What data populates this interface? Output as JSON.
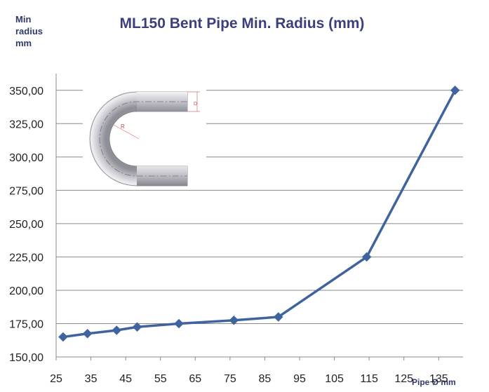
{
  "chart_data": {
    "type": "line",
    "title": "ML150 Bent Pipe Min. Radius (mm)",
    "ylabel_lines": [
      "Min",
      "radius",
      "mm"
    ],
    "xlabel": "Pipe Ø mm",
    "x": [
      27,
      34,
      42.4,
      48.3,
      60.3,
      76.1,
      88.9,
      114.3,
      139.7
    ],
    "y": [
      165,
      167.5,
      170,
      172.5,
      175,
      177.5,
      180,
      225,
      350
    ],
    "xlim": [
      25,
      142
    ],
    "ylim": [
      150,
      362.5
    ],
    "x_ticks": [
      25,
      35,
      45,
      55,
      65,
      75,
      85,
      95,
      105,
      115,
      125,
      135
    ],
    "x_tick_labels": [
      "25",
      "35",
      "45",
      "55",
      "65",
      "75",
      "85",
      "95",
      "105",
      "115",
      "125",
      "135"
    ],
    "y_ticks": [
      150,
      175,
      200,
      225,
      250,
      275,
      300,
      325,
      350
    ],
    "y_tick_labels": [
      "150,00",
      "175,00",
      "200,00",
      "225,00",
      "250,00",
      "275,00",
      "300,00",
      "325,00",
      "350,00"
    ],
    "grid": true,
    "legend": false,
    "series_color": "#3f649d",
    "inset_image": "bent-pipe-illustration",
    "inset_labels": {
      "radius": "R",
      "diameter": "D"
    }
  }
}
